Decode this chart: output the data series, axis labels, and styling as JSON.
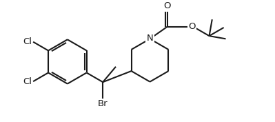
{
  "bg_color": "#ffffff",
  "line_color": "#1a1a1a",
  "line_width": 1.5,
  "font_size": 9.5,
  "labels": {
    "Cl_top": "Cl",
    "Cl_bottom": "Cl",
    "Br": "Br",
    "N": "N",
    "O_carbonyl": "O",
    "O_ester": "O"
  }
}
